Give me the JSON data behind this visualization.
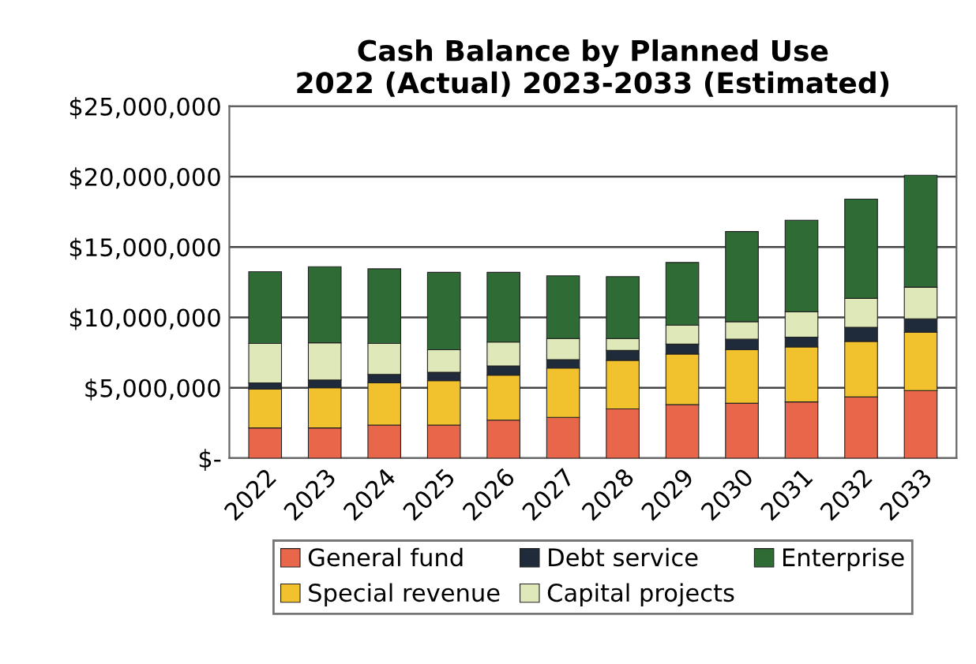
{
  "chart_data": {
    "type": "bar",
    "stacked": true,
    "title": "Cash Balance by Planned Use\n2022 (Actual) 2023-2033 (Estimated)",
    "categories": [
      "2022",
      "2023",
      "2024",
      "2025",
      "2026",
      "2027",
      "2028",
      "2029",
      "2030",
      "2031",
      "2032",
      "2033"
    ],
    "series": [
      {
        "name": "General fund",
        "color": "#e8664a",
        "values": [
          2150000,
          2150000,
          2350000,
          2350000,
          2700000,
          2900000,
          3500000,
          3800000,
          3900000,
          4000000,
          4350000,
          4800000
        ]
      },
      {
        "name": "Special revenue",
        "color": "#f2c12e",
        "values": [
          2750000,
          2850000,
          3000000,
          3150000,
          3200000,
          3500000,
          3450000,
          3600000,
          3800000,
          3900000,
          3950000,
          4150000
        ]
      },
      {
        "name": "Debt service",
        "color": "#1f2a3a",
        "values": [
          450000,
          550000,
          600000,
          600000,
          650000,
          600000,
          700000,
          700000,
          750000,
          700000,
          1000000,
          950000
        ]
      },
      {
        "name": "Capital projects",
        "color": "#dfe8b8",
        "values": [
          2800000,
          2650000,
          2200000,
          1600000,
          1700000,
          1500000,
          850000,
          1350000,
          1250000,
          1800000,
          2050000,
          2250000
        ]
      },
      {
        "name": "Enterprise",
        "color": "#2e6b35",
        "values": [
          5100000,
          5400000,
          5300000,
          5500000,
          4950000,
          4450000,
          4400000,
          4450000,
          6400000,
          6500000,
          7050000,
          7950000
        ]
      }
    ],
    "ylim": [
      0,
      25000000
    ],
    "yticks": [
      {
        "value": 0,
        "label": "$-"
      },
      {
        "value": 5000000,
        "label": "$5,000,000"
      },
      {
        "value": 10000000,
        "label": "$10,000,000"
      },
      {
        "value": 15000000,
        "label": "$15,000,000"
      },
      {
        "value": 20000000,
        "label": "$20,000,000"
      },
      {
        "value": 25000000,
        "label": "$25,000,000"
      }
    ],
    "grid": "y",
    "legend": "bottom"
  }
}
